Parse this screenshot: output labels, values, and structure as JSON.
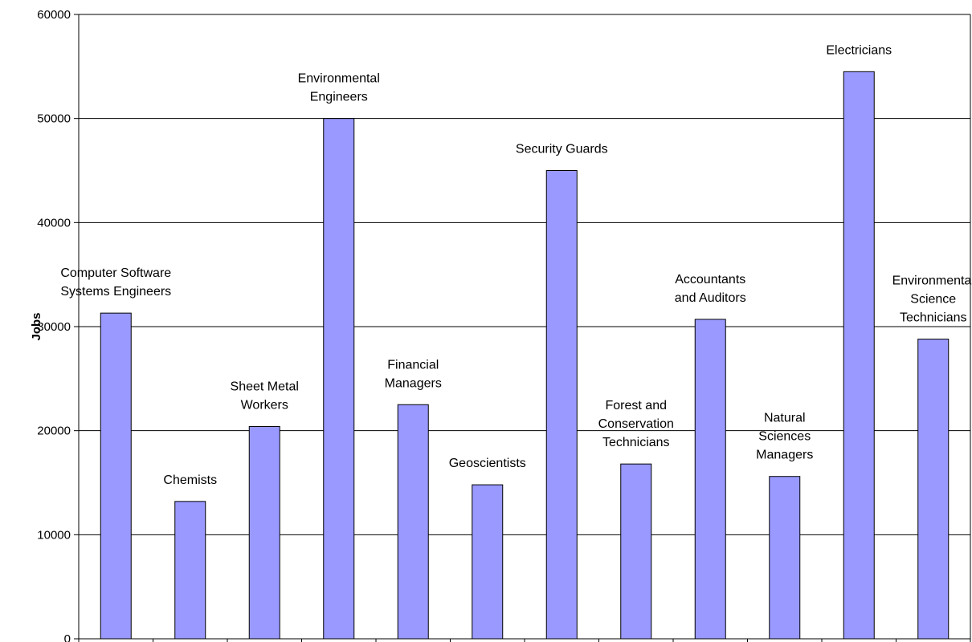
{
  "chart_data": {
    "type": "bar",
    "title": "",
    "xlabel": "",
    "ylabel": "Jobs",
    "ylim": [
      0,
      60000
    ],
    "yticks": [
      0,
      10000,
      20000,
      30000,
      40000,
      50000,
      60000
    ],
    "grid": true,
    "legend": "none",
    "colors": {
      "bar": "#9999ff",
      "bar_edge": "#000000",
      "grid": "#000000"
    },
    "categories": [
      "Computer Software Systems Engineers",
      "Chemists",
      "Sheet Metal Workers",
      "Environmental Engineers",
      "Financial Managers",
      "Geoscientists",
      "Security Guards",
      "Forest and Conservation Technicians",
      "Accountants and Auditors",
      "Natural Sciences Managers",
      "Electricians",
      "Environmental Science Technicians"
    ],
    "label_lines": [
      [
        "Computer Software",
        "Systems Engineers"
      ],
      [
        "Chemists"
      ],
      [
        "Sheet Metal",
        "Workers"
      ],
      [
        "Environmental",
        "Engineers"
      ],
      [
        "Financial",
        "Managers"
      ],
      [
        "Geoscientists"
      ],
      [
        "Security Guards"
      ],
      [
        "Forest and",
        "Conservation",
        "Technicians"
      ],
      [
        "Accountants",
        "and Auditors"
      ],
      [
        "Natural",
        "Sciences",
        "Managers"
      ],
      [
        "Electricians"
      ],
      [
        "Environmental",
        "Science",
        "Technicians"
      ]
    ],
    "values": [
      31300,
      13200,
      20400,
      50000,
      22500,
      14800,
      45000,
      16800,
      30700,
      15600,
      54500,
      28800
    ]
  }
}
